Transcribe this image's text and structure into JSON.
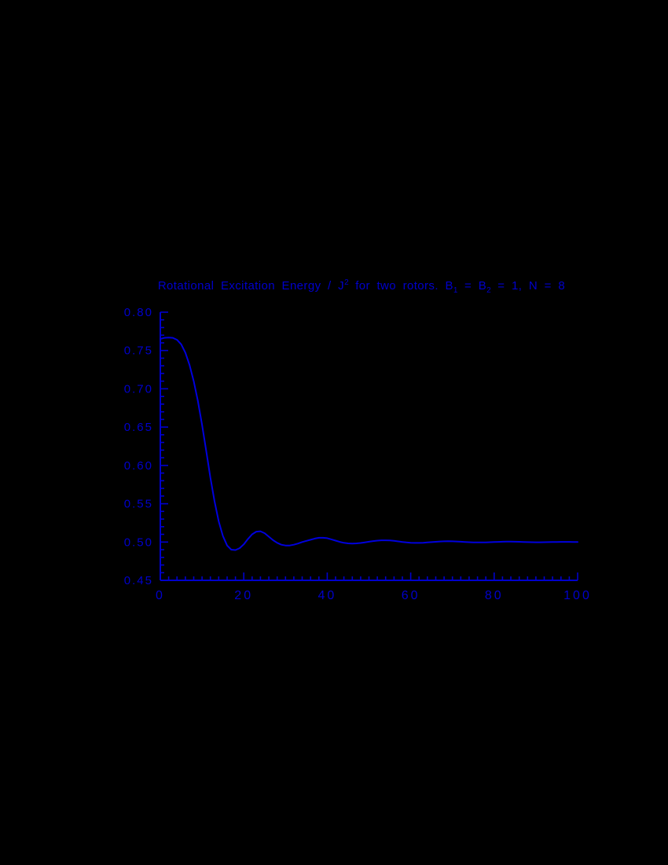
{
  "page": {
    "background": "#000000",
    "accent": "#0000CC"
  },
  "chart_data": {
    "type": "line",
    "title": "Rotational Excitation Energy / J^2 for two rotors. B_1 = B_2 = 1, N = 8",
    "title_parts": {
      "p1": "Rotational Excitation Energy / J",
      "sup1": "2",
      "p2": " for two rotors. B",
      "sub1": "1",
      "p3": " = B",
      "sub2": "2",
      "p4": " = 1, N = 8"
    },
    "xlabel": "",
    "ylabel": "",
    "xlim": [
      0,
      100
    ],
    "ylim": [
      0.45,
      0.8
    ],
    "x_major_step": 20,
    "x_minor_step": 2,
    "y_major_step": 0.05,
    "y_minor_step": 0.01,
    "x_tick_values": [
      0,
      20,
      40,
      60,
      80,
      100
    ],
    "x_tick_labels": [
      "0",
      "20",
      "40",
      "60",
      "80",
      "100"
    ],
    "y_tick_values": [
      0.45,
      0.5,
      0.55,
      0.6,
      0.65,
      0.7,
      0.75,
      0.8
    ],
    "y_tick_labels": [
      "0.45",
      "0.50",
      "0.55",
      "0.60",
      "0.65",
      "0.70",
      "0.75",
      "0.80"
    ],
    "grid": false,
    "legend": null,
    "axis_color": "#0000CC",
    "line_color": "#0000DD",
    "x": [
      0,
      1,
      2,
      3,
      4,
      5,
      6,
      7,
      8,
      9,
      10,
      11,
      12,
      13,
      14,
      15,
      16,
      17,
      18,
      19,
      20,
      21,
      22,
      23,
      24,
      25,
      26,
      27,
      28,
      29,
      30,
      31,
      32,
      33,
      34,
      35,
      36,
      37,
      38,
      39,
      40,
      41,
      42,
      43,
      44,
      45,
      46,
      47,
      48,
      49,
      50,
      51,
      52,
      53,
      54,
      55,
      56,
      57,
      58,
      59,
      60,
      61,
      62,
      63,
      64,
      65,
      66,
      67,
      68,
      69,
      70,
      71,
      72,
      73,
      74,
      75,
      76,
      77,
      78,
      79,
      80,
      81,
      82,
      83,
      84,
      85,
      86,
      87,
      88,
      89,
      90,
      91,
      92,
      93,
      94,
      95,
      96,
      97,
      98,
      99,
      100
    ],
    "series": [
      {
        "name": "rotational-excitation-energy",
        "values": [
          0.765,
          0.7665,
          0.767,
          0.7665,
          0.764,
          0.758,
          0.747,
          0.731,
          0.71,
          0.684,
          0.653,
          0.619,
          0.584,
          0.553,
          0.527,
          0.508,
          0.4955,
          0.49,
          0.4895,
          0.492,
          0.497,
          0.504,
          0.51,
          0.5135,
          0.514,
          0.5115,
          0.507,
          0.5025,
          0.499,
          0.4965,
          0.4955,
          0.4955,
          0.4965,
          0.498,
          0.5,
          0.5015,
          0.503,
          0.5045,
          0.5055,
          0.5055,
          0.505,
          0.5035,
          0.5018,
          0.5002,
          0.499,
          0.4982,
          0.498,
          0.4982,
          0.4988,
          0.4996,
          0.5004,
          0.5012,
          0.5018,
          0.5022,
          0.5022,
          0.502,
          0.5015,
          0.5008,
          0.5001,
          0.4995,
          0.4991,
          0.4989,
          0.4989,
          0.4991,
          0.4995,
          0.4999,
          0.5003,
          0.5007,
          0.5009,
          0.501,
          0.5009,
          0.5007,
          0.5004,
          0.5001,
          0.4998,
          0.4996,
          0.4995,
          0.4995,
          0.4996,
          0.4998,
          0.5,
          0.5002,
          0.5004,
          0.5005,
          0.5005,
          0.5004,
          0.5003,
          0.5001,
          0.4999,
          0.4998,
          0.4997,
          0.4997,
          0.4998,
          0.4999,
          0.5,
          0.5001,
          0.5002,
          0.5002,
          0.5002,
          0.5001,
          0.5
        ]
      }
    ]
  }
}
